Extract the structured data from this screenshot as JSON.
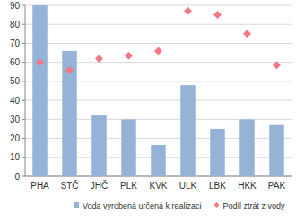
{
  "chart_data": {
    "type": "bar",
    "categories": [
      "PHA",
      "STČ",
      "JHČ",
      "PLK",
      "KVK",
      "ULK",
      "LBK",
      "HKK",
      "PAK"
    ],
    "series": [
      {
        "name": "Voda vyrobená určená k realizaci",
        "type": "bar",
        "color": "#95b3d7",
        "values": [
          90,
          66,
          32,
          30,
          16.5,
          48,
          25,
          30,
          27
        ]
      },
      {
        "name": "Podíl ztrát z vody",
        "type": "scatter",
        "color": "#f47983",
        "marker": "diamond",
        "line_style": "none",
        "values": [
          60,
          56,
          62,
          63.5,
          66,
          87,
          85,
          75,
          58.5
        ]
      }
    ],
    "ylim": [
      0,
      90
    ],
    "yticks": [
      0,
      10,
      20,
      30,
      40,
      50,
      60,
      70,
      80,
      90
    ],
    "grid": true,
    "legend": "bottom"
  }
}
